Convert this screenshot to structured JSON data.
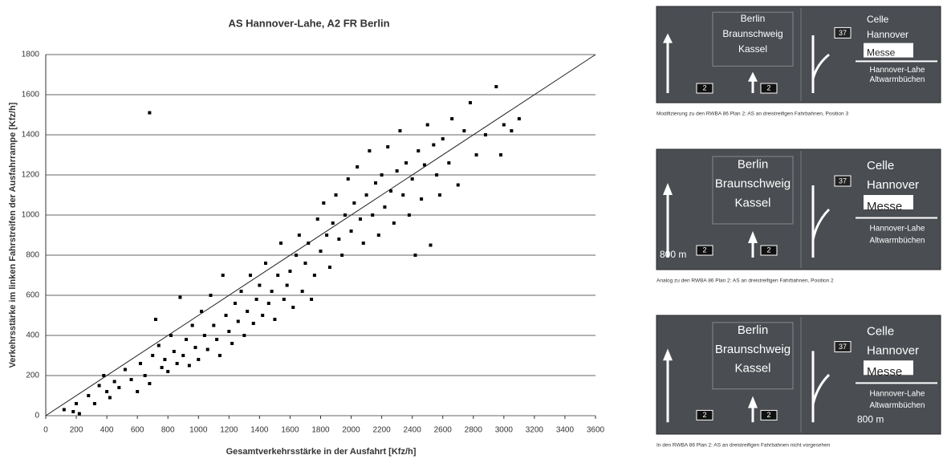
{
  "chart_data": {
    "type": "scatter",
    "title": "AS Hannover-Lahe, A2 FR Berlin",
    "x_label": "Gesamtverkehrsstärke in der Ausfahrt [Kfz/h]",
    "y_label": "Verkehrsstärke im linken Fahrstreifen der Ausfahrrampe [Kfz/h]",
    "xlim": [
      0,
      3600
    ],
    "ylim": [
      0,
      1800
    ],
    "xticks": [
      0,
      200,
      400,
      600,
      800,
      1000,
      1200,
      1400,
      1600,
      1800,
      2000,
      2200,
      2400,
      2600,
      2800,
      3000,
      3200,
      3400,
      3600
    ],
    "yticks": [
      0,
      200,
      400,
      600,
      800,
      1000,
      1200,
      1400,
      1600,
      1800
    ],
    "grid": true,
    "color": "#000000",
    "x": [
      120,
      180,
      200,
      220,
      280,
      320,
      350,
      380,
      400,
      420,
      450,
      480,
      520,
      560,
      600,
      620,
      650,
      680,
      700,
      720,
      740,
      760,
      780,
      800,
      820,
      840,
      860,
      880,
      900,
      920,
      940,
      960,
      980,
      1000,
      1020,
      1040,
      1060,
      1080,
      1100,
      1120,
      1140,
      1160,
      1180,
      1200,
      1220,
      1240,
      1260,
      1280,
      1300,
      1320,
      1340,
      1360,
      1380,
      1400,
      1420,
      1440,
      1460,
      1480,
      1500,
      1520,
      1540,
      1560,
      1580,
      1600,
      1620,
      1640,
      1660,
      1680,
      1700,
      1720,
      1740,
      1760,
      1780,
      1800,
      1820,
      1840,
      1860,
      1880,
      1900,
      1920,
      1940,
      1960,
      1980,
      2000,
      2020,
      2040,
      2060,
      2080,
      2100,
      2120,
      2140,
      2160,
      2180,
      2200,
      2220,
      2240,
      2260,
      2280,
      2300,
      2320,
      2340,
      2360,
      2380,
      2400,
      2420,
      2440,
      2460,
      2480,
      2500,
      2520,
      2540,
      2560,
      2580,
      2600,
      2640,
      2660,
      2700,
      2740,
      2780,
      2820,
      2880,
      2950,
      2980,
      3000,
      3050,
      3100,
      680
    ],
    "y": [
      30,
      20,
      60,
      10,
      100,
      60,
      150,
      200,
      120,
      90,
      170,
      140,
      230,
      180,
      120,
      260,
      200,
      160,
      300,
      480,
      350,
      240,
      280,
      220,
      400,
      320,
      260,
      590,
      300,
      380,
      250,
      450,
      340,
      280,
      520,
      400,
      330,
      600,
      450,
      380,
      300,
      700,
      500,
      420,
      360,
      560,
      470,
      620,
      400,
      520,
      700,
      460,
      580,
      650,
      500,
      760,
      560,
      620,
      480,
      700,
      860,
      580,
      650,
      720,
      540,
      800,
      900,
      620,
      760,
      860,
      580,
      700,
      980,
      820,
      1060,
      900,
      740,
      960,
      1100,
      880,
      800,
      1000,
      1180,
      920,
      1060,
      1240,
      980,
      860,
      1100,
      1320,
      1000,
      1160,
      900,
      1200,
      1040,
      1340,
      1120,
      960,
      1220,
      1420,
      1100,
      1260,
      1000,
      1180,
      800,
      1320,
      1080,
      1250,
      1450,
      850,
      1350,
      1200,
      1100,
      1380,
      1260,
      1480,
      1150,
      1420,
      1560,
      1300,
      1400,
      1640,
      1300,
      1450,
      1420,
      1480,
      1510
    ],
    "reference_line": {
      "x": [
        0,
        3600
      ],
      "y": [
        0,
        1800
      ]
    }
  },
  "signs": [
    {
      "left": [
        "Berlin",
        "Braunschweig",
        "Kassel"
      ],
      "route": "37",
      "right": [
        "Celle",
        "Hannover",
        "Messe"
      ],
      "exit": [
        "Hannover-Lahe",
        "Altwarmbüchen"
      ],
      "lanes": [
        "2",
        "2"
      ],
      "caption": "Modifizierung zu den RWBA 86 Plan 2: AS an dreistreifigen Fahrbahnen, Position 3"
    },
    {
      "left": [
        "Berlin",
        "Braunschweig",
        "Kassel"
      ],
      "route": "37",
      "right": [
        "Celle",
        "Hannover",
        "Messe"
      ],
      "exit": [
        "Hannover-Lahe",
        "Altwarmbüchen"
      ],
      "lanes": [
        "2",
        "2"
      ],
      "distance": "800 m",
      "caption": "Analog zu den RWBA 86 Plan 2: AS an dreistreifigen Fahrbahnen, Position 2"
    },
    {
      "left": [
        "Berlin",
        "Braunschweig",
        "Kassel"
      ],
      "route": "37",
      "right": [
        "Celle",
        "Hannover",
        "Messe"
      ],
      "exit": [
        "Hannover-Lahe",
        "Altwarmbüchen"
      ],
      "lanes": [
        "2",
        "2"
      ],
      "distance": "800 m",
      "caption": "In den RWBA 86 Plan 2: AS an dreistreifigen Fahrbahnen nicht vorgesehen"
    }
  ]
}
